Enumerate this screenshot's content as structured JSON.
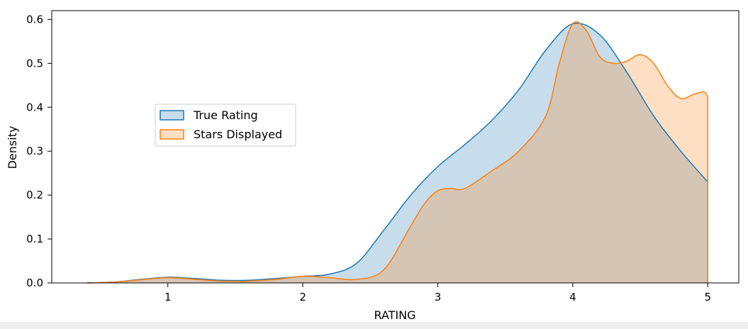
{
  "chart_data": {
    "type": "area",
    "title": "",
    "xlabel": "RATING",
    "ylabel": "Density",
    "xlim": [
      0.14,
      5.23
    ],
    "ylim": [
      0.0,
      0.62
    ],
    "xticks": [
      1,
      2,
      3,
      4,
      5
    ],
    "xtick_labels": [
      "1",
      "2",
      "3",
      "4",
      "5"
    ],
    "yticks": [
      0.0,
      0.1,
      0.2,
      0.3,
      0.4,
      0.5,
      0.6
    ],
    "ytick_labels": [
      "0.0",
      "0.1",
      "0.2",
      "0.3",
      "0.4",
      "0.5",
      "0.6"
    ],
    "grid": false,
    "legend_position": "center-left",
    "series": [
      {
        "name": "True Rating",
        "color": "#1f77b4",
        "fill": "#c4d9ec",
        "x": [
          0.4,
          0.6,
          0.8,
          1.0,
          1.2,
          1.4,
          1.6,
          1.8,
          2.0,
          2.2,
          2.4,
          2.6,
          2.8,
          3.0,
          3.2,
          3.4,
          3.6,
          3.8,
          4.0,
          4.2,
          4.4,
          4.6,
          4.8,
          5.0
        ],
        "y": [
          0.0,
          0.002,
          0.008,
          0.013,
          0.01,
          0.006,
          0.006,
          0.01,
          0.015,
          0.02,
          0.045,
          0.12,
          0.2,
          0.265,
          0.315,
          0.37,
          0.44,
          0.53,
          0.59,
          0.565,
          0.48,
          0.38,
          0.3,
          0.23
        ]
      },
      {
        "name": "Stars Displayed",
        "color": "#ff7f0e",
        "fill": "#ffdcbf",
        "x": [
          0.4,
          0.6,
          0.8,
          1.0,
          1.2,
          1.4,
          1.6,
          1.8,
          2.0,
          2.2,
          2.4,
          2.6,
          2.8,
          2.9,
          3.0,
          3.1,
          3.2,
          3.4,
          3.6,
          3.8,
          3.9,
          4.0,
          4.1,
          4.2,
          4.3,
          4.4,
          4.5,
          4.6,
          4.7,
          4.8,
          4.9,
          4.97,
          5.0
        ],
        "y": [
          0.0,
          0.002,
          0.007,
          0.012,
          0.008,
          0.004,
          0.004,
          0.008,
          0.015,
          0.012,
          0.008,
          0.03,
          0.13,
          0.18,
          0.21,
          0.215,
          0.215,
          0.255,
          0.3,
          0.38,
          0.5,
          0.59,
          0.575,
          0.515,
          0.5,
          0.505,
          0.52,
          0.5,
          0.45,
          0.42,
          0.43,
          0.435,
          0.425
        ]
      }
    ]
  }
}
